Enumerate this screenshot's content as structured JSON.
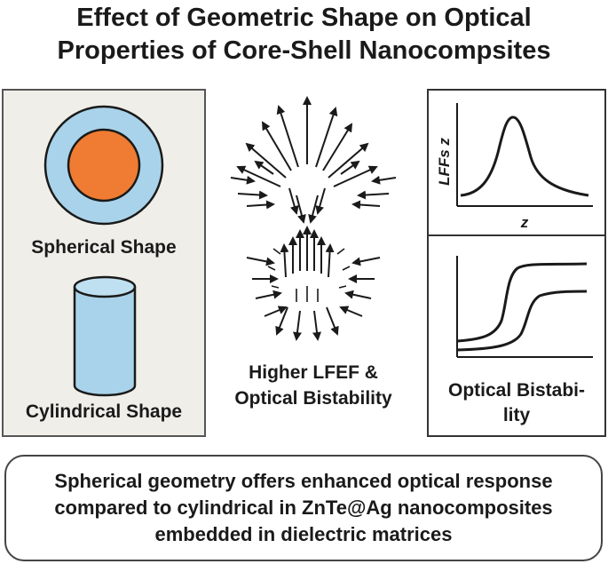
{
  "title": {
    "line1": "Effect of Geometric Shape on Optical",
    "line2": "Properties of Core-Shell Nanocompsites"
  },
  "left_panel": {
    "spherical_label": "Spherical Shape",
    "cylindrical_label": "Cylindrical Shape"
  },
  "center": {
    "label_line1": "Higher LFEF &",
    "label_line2": "Optical Bistability"
  },
  "lfef_plot": {
    "ylabel": "LFFs z",
    "xlabel": "z"
  },
  "bistability_plot": {
    "label_line1": "Optical Bistabi-",
    "label_line2": "lity"
  },
  "caption": {
    "line1": "Spherical geometry offers enhanced optical response",
    "line2": "compared to cylindrical in ZnTe@Ag nanocomposites",
    "line3": "embedded in dielectric matrices"
  },
  "colors": {
    "shell": "#a9d3ea",
    "core": "#ef7c32",
    "cylinder": "#a9d3ea",
    "panel_bg": "#efeee8"
  }
}
